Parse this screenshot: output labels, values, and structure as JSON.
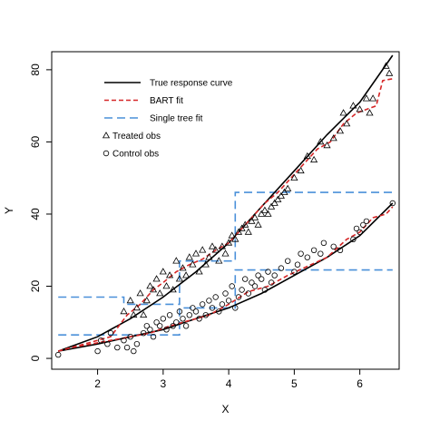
{
  "chart_data": {
    "type": "scatter",
    "xlabel": "X",
    "ylabel": "Y",
    "xlim": [
      1.3,
      6.6
    ],
    "ylim": [
      -3,
      85
    ],
    "x_ticks": [
      2,
      3,
      4,
      5,
      6
    ],
    "y_ticks": [
      0,
      20,
      40,
      60,
      80
    ],
    "grid": false,
    "legend_position": "top-left",
    "legend": [
      {
        "label": "True response curve",
        "style": "solid",
        "color": "#000000"
      },
      {
        "label": "BART fit",
        "style": "dashed",
        "color": "#d62728"
      },
      {
        "label": "Single tree fit",
        "style": "longdash",
        "color": "#4a90d9"
      },
      {
        "label": "Treated obs",
        "marker": "triangle"
      },
      {
        "label": "Control obs",
        "marker": "circle"
      }
    ],
    "true_response": {
      "treated": {
        "x": [
          1.4,
          2.0,
          2.5,
          3.0,
          3.5,
          4.0,
          4.5,
          5.0,
          5.5,
          6.0,
          6.5
        ],
        "y": [
          2,
          6,
          11,
          17,
          24,
          32,
          42,
          52,
          62,
          71,
          84
        ]
      },
      "control": {
        "x": [
          1.4,
          2.0,
          2.5,
          3.0,
          3.5,
          4.0,
          4.5,
          5.0,
          5.5,
          6.0,
          6.5
        ],
        "y": [
          2,
          4,
          6,
          8,
          11,
          14,
          18,
          23,
          28,
          34,
          43
        ]
      }
    },
    "bart_fit": {
      "treated": {
        "x": [
          1.4,
          1.6,
          1.9,
          2.2,
          2.45,
          2.65,
          2.85,
          3.0,
          3.2,
          3.4,
          3.6,
          3.8,
          4.0,
          4.15,
          4.35,
          4.55,
          4.75,
          4.95,
          5.15,
          5.35,
          5.55,
          5.75,
          5.95,
          6.1,
          6.25,
          6.35,
          6.5
        ],
        "y": [
          2,
          3,
          4.5,
          6,
          12,
          15,
          19,
          21,
          24,
          26,
          27.5,
          30,
          32,
          35,
          39,
          43,
          46,
          50,
          54,
          58,
          60,
          65,
          68,
          69,
          70,
          77,
          77.5
        ]
      },
      "control": {
        "x": [
          1.4,
          1.6,
          1.9,
          2.2,
          2.5,
          2.8,
          3.1,
          3.4,
          3.7,
          4.0,
          4.3,
          4.6,
          4.9,
          5.2,
          5.5,
          5.8,
          6.0,
          6.2,
          6.4,
          6.5
        ],
        "y": [
          2,
          3,
          4,
          5,
          6,
          7,
          9,
          10.5,
          12,
          15,
          18.5,
          20,
          23,
          25.5,
          28,
          33,
          35,
          39,
          40,
          42
        ]
      }
    },
    "single_tree_fit": {
      "treated": {
        "x": [
          1.4,
          2.4,
          2.4,
          3.25,
          3.25,
          3.6,
          3.6,
          4.1,
          4.1,
          6.5
        ],
        "y": [
          17,
          17,
          15,
          15,
          27,
          27,
          27,
          27,
          46,
          46
        ]
      },
      "control": {
        "x": [
          1.4,
          2.3,
          2.3,
          3.25,
          3.25,
          4.1,
          4.1,
          6.5
        ],
        "y": [
          6.5,
          6.5,
          6.5,
          6.5,
          14,
          14,
          24.5,
          24.5
        ]
      }
    },
    "treated_obs": {
      "x": [
        2.4,
        2.5,
        2.55,
        2.6,
        2.65,
        2.7,
        2.75,
        2.8,
        2.85,
        2.9,
        2.95,
        3.0,
        3.05,
        3.1,
        3.15,
        3.2,
        3.25,
        3.3,
        3.35,
        3.4,
        3.45,
        3.5,
        3.55,
        3.6,
        3.65,
        3.7,
        3.75,
        3.8,
        3.85,
        3.9,
        3.95,
        4.0,
        4.05,
        4.1,
        4.15,
        4.2,
        4.25,
        4.3,
        4.35,
        4.4,
        4.45,
        4.5,
        4.55,
        4.6,
        4.65,
        4.7,
        4.75,
        4.8,
        4.85,
        4.9,
        5.0,
        5.1,
        5.2,
        5.3,
        5.4,
        5.5,
        5.6,
        5.7,
        5.75,
        5.8,
        5.9,
        6.0,
        6.1,
        6.15,
        6.2,
        6.4,
        6.45
      ],
      "y": [
        13,
        16,
        12,
        14,
        18,
        12,
        16,
        20,
        19,
        22,
        18,
        24,
        20,
        23,
        19,
        27,
        22,
        25,
        23,
        28,
        26,
        29,
        24,
        30,
        26,
        28,
        31,
        30,
        27,
        31,
        29,
        32,
        34,
        33,
        35,
        36,
        37,
        35,
        38,
        39,
        37,
        40,
        41,
        40,
        42,
        43,
        44,
        45,
        46,
        47,
        50,
        52,
        56,
        55,
        60,
        59,
        61,
        63,
        68,
        65,
        70,
        69,
        72,
        68,
        72,
        81,
        79
      ]
    },
    "control_obs": {
      "x": [
        1.4,
        2.0,
        2.05,
        2.15,
        2.2,
        2.3,
        2.4,
        2.45,
        2.5,
        2.55,
        2.6,
        2.7,
        2.75,
        2.8,
        2.85,
        2.9,
        2.95,
        3.0,
        3.05,
        3.1,
        3.15,
        3.2,
        3.25,
        3.3,
        3.35,
        3.4,
        3.45,
        3.5,
        3.55,
        3.6,
        3.65,
        3.7,
        3.75,
        3.8,
        3.85,
        3.9,
        3.95,
        4.0,
        4.05,
        4.1,
        4.15,
        4.2,
        4.25,
        4.3,
        4.35,
        4.4,
        4.45,
        4.5,
        4.55,
        4.6,
        4.65,
        4.7,
        4.8,
        4.9,
        5.0,
        5.05,
        5.1,
        5.2,
        5.3,
        5.4,
        5.45,
        5.6,
        5.7,
        5.9,
        5.95,
        6.0,
        6.05,
        6.1,
        6.5
      ],
      "y": [
        1,
        2,
        5,
        4,
        7,
        3,
        5,
        3,
        6,
        2,
        4,
        7,
        9,
        8,
        6,
        10,
        9,
        11,
        8,
        12,
        9,
        10,
        13,
        11,
        9,
        12,
        14,
        13,
        11,
        15,
        12,
        16,
        14,
        17,
        13,
        15,
        18,
        16,
        20,
        14,
        17,
        19,
        22,
        18,
        21,
        20,
        23,
        22,
        19,
        24,
        21,
        23,
        25,
        27,
        24,
        26,
        29,
        28,
        30,
        29,
        32,
        31,
        30,
        33,
        36,
        35,
        37,
        38,
        43
      ]
    }
  }
}
